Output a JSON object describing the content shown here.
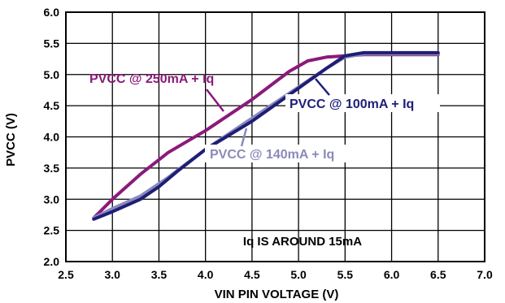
{
  "chart_data": {
    "type": "line",
    "xlabel": "VIN PIN VOLTAGE (V)",
    "ylabel": "PVCC (V)",
    "xlim": [
      2.5,
      7.0
    ],
    "ylim": [
      2.0,
      6.0
    ],
    "x_ticks": [
      "2.5",
      "3.0",
      "3.5",
      "4.0",
      "4.5",
      "5.0",
      "5.5",
      "6.0",
      "6.5",
      "7.0"
    ],
    "y_ticks": [
      "2.0",
      "2.5",
      "3.0",
      "3.5",
      "4.0",
      "4.5",
      "5.0",
      "5.5",
      "6.0"
    ],
    "grid": true,
    "annotation": "Iq IS AROUND 15mA",
    "series": [
      {
        "name": "PVCC @ 250mA + Iq",
        "color": "#8B1A7A",
        "x": [
          2.8,
          3.0,
          3.3,
          3.6,
          4.0,
          4.5,
          4.9,
          5.1,
          5.3,
          5.5,
          5.7,
          6.0,
          6.5
        ],
        "y": [
          2.7,
          3.0,
          3.4,
          3.75,
          4.1,
          4.6,
          5.05,
          5.22,
          5.28,
          5.3,
          5.32,
          5.32,
          5.32
        ]
      },
      {
        "name": "PVCC @ 140mA + Iq",
        "color": "#8A8ABA",
        "x": [
          2.8,
          3.0,
          3.3,
          3.6,
          4.0,
          4.5,
          5.0,
          5.3,
          5.5,
          5.7,
          6.0,
          6.5
        ],
        "y": [
          2.7,
          2.85,
          3.05,
          3.35,
          3.8,
          4.3,
          4.8,
          5.1,
          5.28,
          5.33,
          5.33,
          5.33
        ]
      },
      {
        "name": "PVCC @ 100mA + Iq",
        "color": "#1E1E78",
        "x": [
          2.8,
          3.0,
          3.3,
          3.5,
          3.7,
          4.0,
          4.5,
          5.0,
          5.3,
          5.5,
          5.7,
          6.0,
          6.5
        ],
        "y": [
          2.68,
          2.8,
          3.0,
          3.2,
          3.45,
          3.8,
          4.25,
          4.78,
          5.1,
          5.3,
          5.35,
          5.35,
          5.35
        ]
      }
    ]
  }
}
